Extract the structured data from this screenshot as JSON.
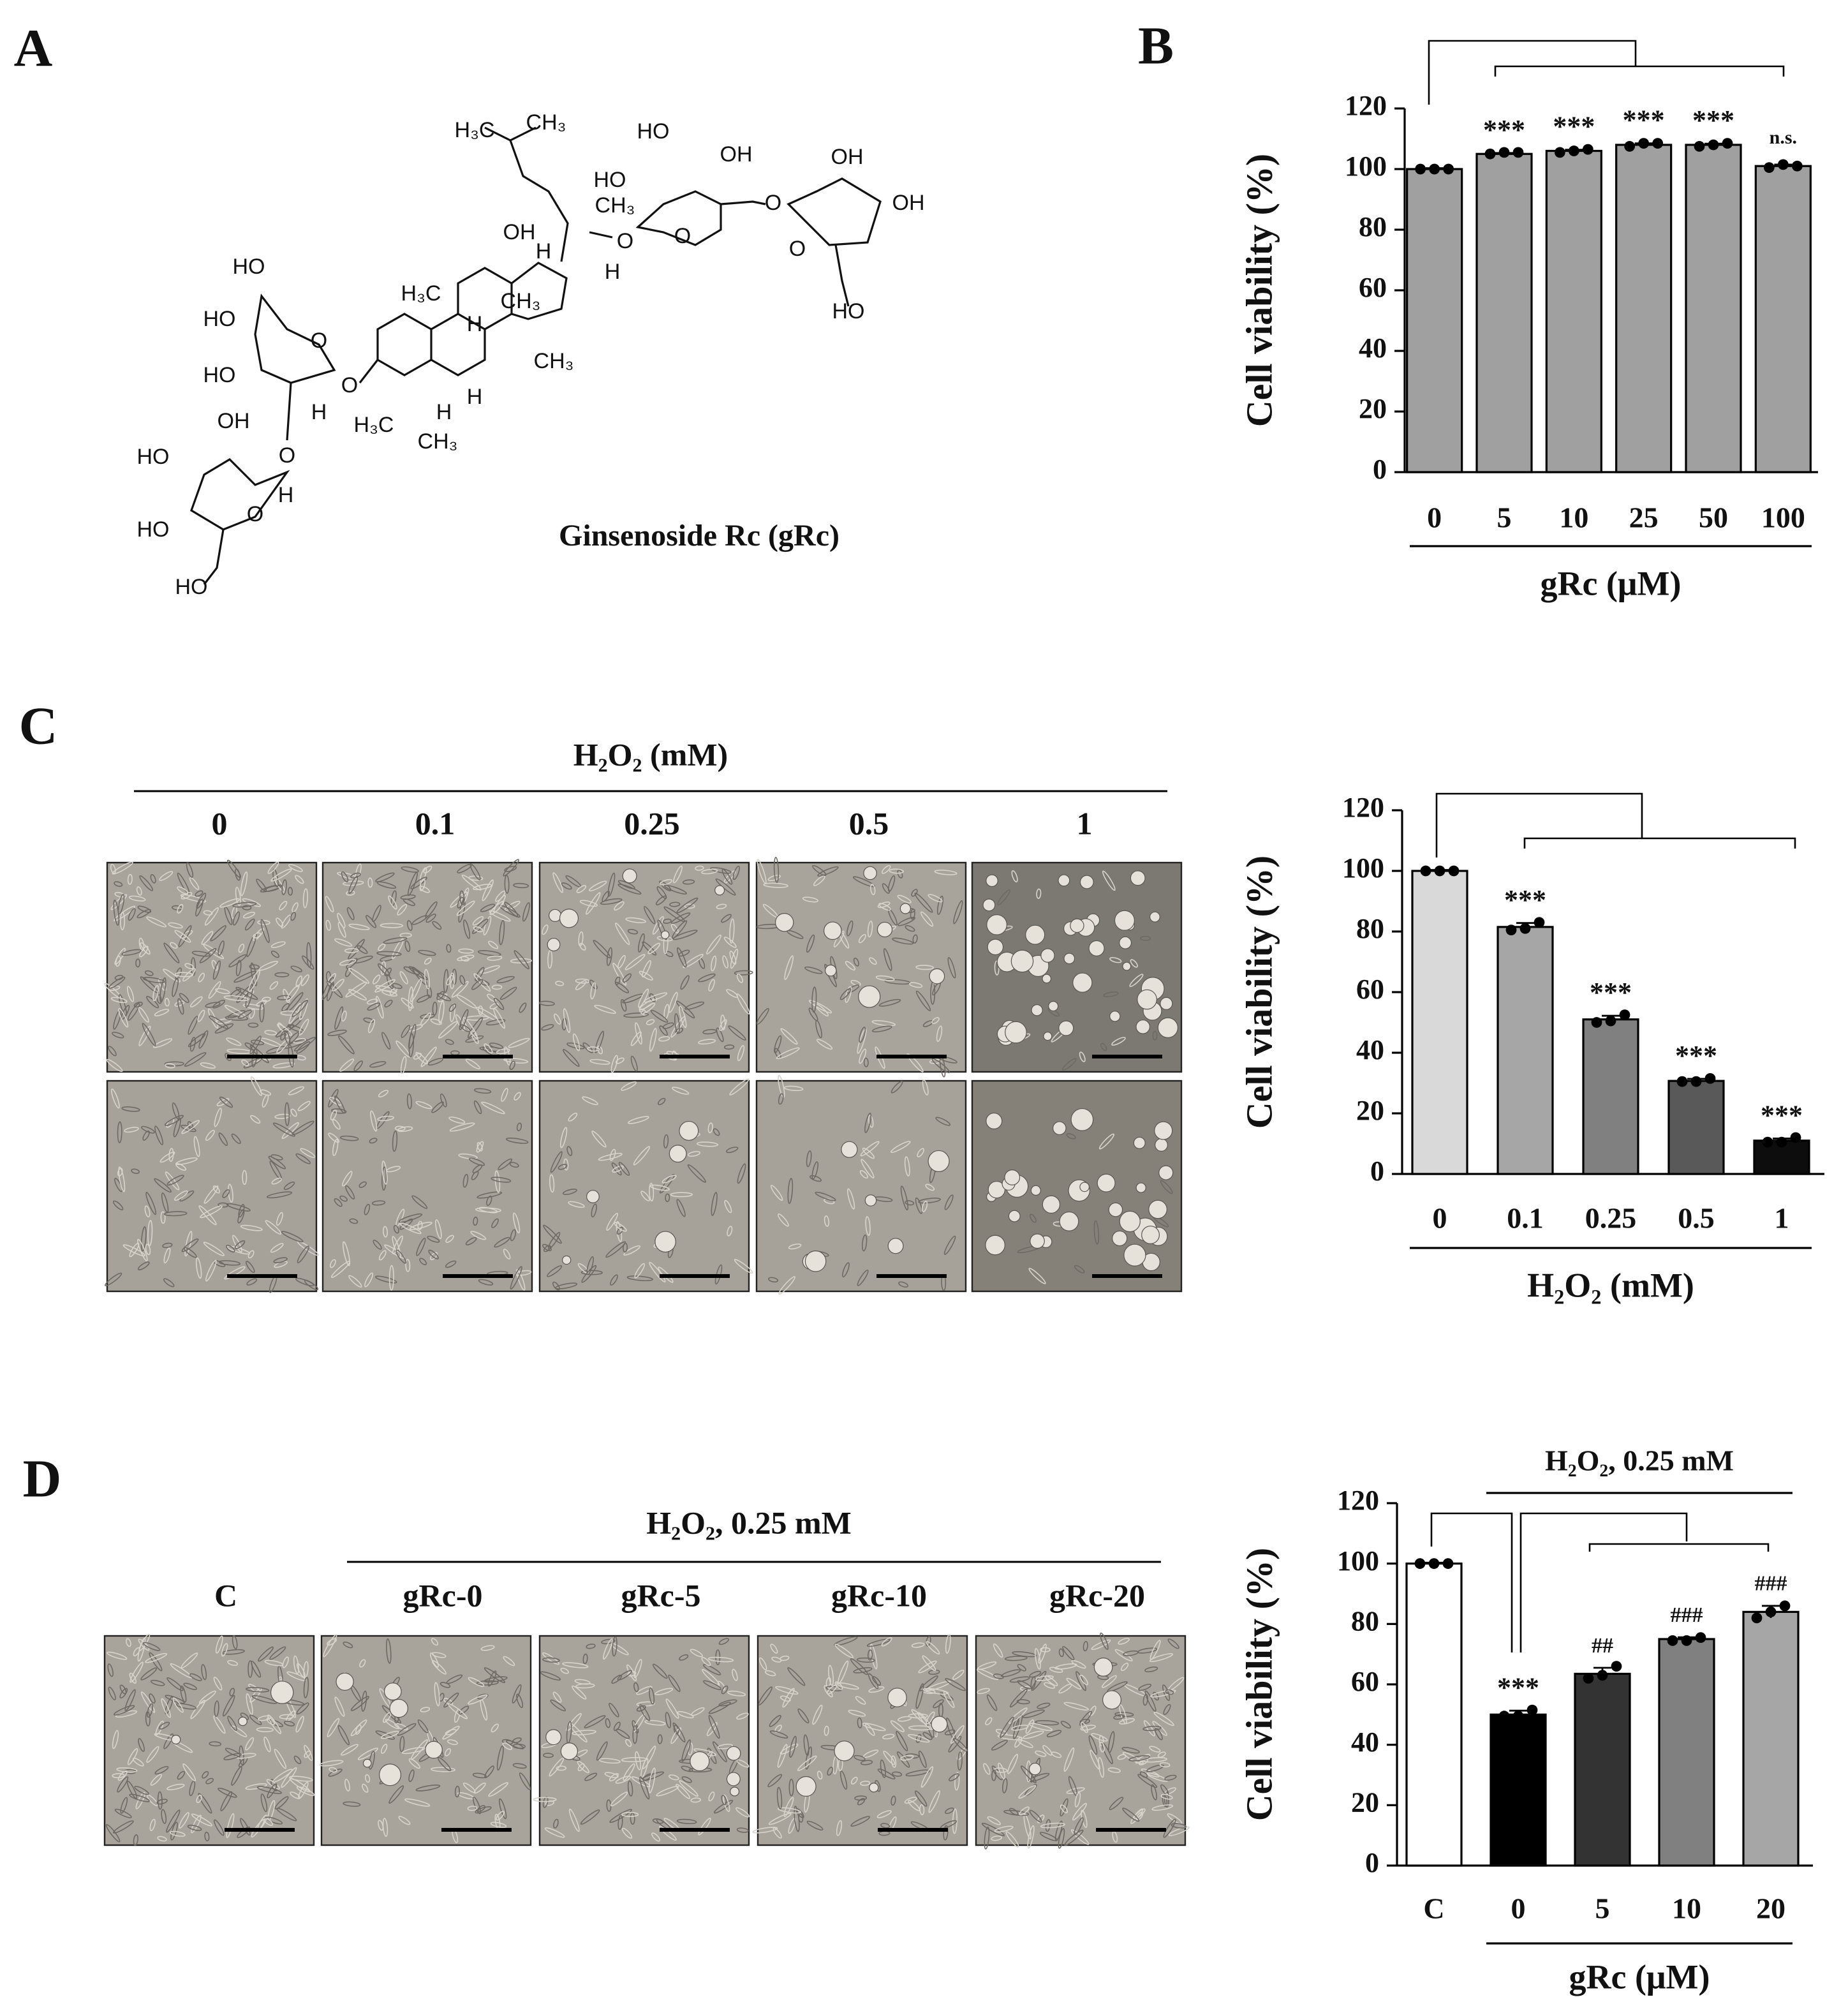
{
  "panels": {
    "A": {
      "label": "A",
      "compound": "Ginsenoside Rc (gRc)",
      "atoms": [
        "H₃C",
        "CH₃",
        "HO",
        "OH",
        "HO",
        "CH₃",
        "OH",
        "O",
        "OH",
        "OH",
        "H",
        "O",
        "O",
        "H",
        "HO",
        "H₃C",
        "CH₃",
        "HO",
        "O",
        "HO",
        "HO",
        "H",
        "O",
        "H",
        "CH₃",
        "H",
        "OH",
        "O",
        "H₃C",
        "CH₃",
        "H",
        "HO",
        "O",
        "HO",
        "HO",
        "O",
        "H"
      ]
    },
    "B": {
      "label": "B"
    },
    "C": {
      "label": "C",
      "header": "H₂O₂ (mM)",
      "columns": [
        "0",
        "0.1",
        "0.25",
        "0.5",
        "1"
      ]
    },
    "D": {
      "label": "D",
      "header": "H₂O₂, 0.25 mM",
      "columns": [
        "C",
        "gRc-0",
        "gRc-5",
        "gRc-10",
        "gRc-20"
      ]
    }
  },
  "chart_data": [
    {
      "type": "bar",
      "ylabel": "Cell viability (%)",
      "xlabel": "gRc (μM)",
      "categories": [
        "0",
        "5",
        "10",
        "25",
        "50",
        "100"
      ],
      "values": [
        100,
        105,
        106,
        108,
        108,
        101
      ],
      "errors": [
        0.3,
        0.3,
        0.4,
        0.5,
        0.4,
        0.5
      ],
      "replicates": [
        [
          100,
          100,
          100
        ],
        [
          105,
          105.5,
          105.5
        ],
        [
          105.5,
          106,
          106.5
        ],
        [
          107.5,
          108.5,
          108.5
        ],
        [
          107.5,
          108,
          108.5
        ],
        [
          100.5,
          101.5,
          101
        ]
      ],
      "annotations": [
        null,
        "***",
        "***",
        "***",
        "***",
        "n.s."
      ],
      "colors": [
        "#a0a0a0",
        "#a0a0a0",
        "#a0a0a0",
        "#a0a0a0",
        "#a0a0a0",
        "#a0a0a0"
      ],
      "ylim": [
        0,
        120
      ],
      "yticks": [
        0,
        20,
        40,
        60,
        80,
        100,
        120
      ]
    },
    {
      "type": "bar",
      "ylabel": "Cell viability (%)",
      "xlabel": "H₂O₂ (mM)",
      "categories": [
        "0",
        "0.1",
        "0.25",
        "0.5",
        "1"
      ],
      "values": [
        100,
        81.5,
        51,
        30.7,
        11
      ],
      "errors": [
        0.3,
        1.3,
        1.2,
        0.7,
        0.7
      ],
      "replicates": [
        [
          100,
          100,
          100
        ],
        [
          80.5,
          81,
          83
        ],
        [
          50,
          50.5,
          52.5
        ],
        [
          30.5,
          30.5,
          31.5
        ],
        [
          10.5,
          10.5,
          12
        ]
      ],
      "annotations": [
        null,
        "***",
        "***",
        "***",
        "***"
      ],
      "colors": [
        "#d9d9d9",
        "#a6a6a6",
        "#808080",
        "#595959",
        "#0d0d0d"
      ],
      "ylim": [
        0,
        120
      ],
      "yticks": [
        0,
        20,
        40,
        60,
        80,
        100,
        120
      ]
    },
    {
      "type": "bar",
      "ylabel": "Cell viability (%)",
      "xlabel": "gRc (μM)",
      "group_label": "H₂O₂, 0.25 mM",
      "categories": [
        "C",
        "0",
        "5",
        "10",
        "20"
      ],
      "values": [
        100,
        50,
        63.5,
        75,
        84
      ],
      "errors": [
        0.3,
        1.3,
        2,
        0.6,
        2
      ],
      "replicates": [
        [
          100,
          100,
          100
        ],
        [
          49.5,
          49.5,
          51.5
        ],
        [
          62,
          63,
          66
        ],
        [
          74.5,
          74.5,
          75.5
        ],
        [
          82,
          84,
          86
        ]
      ],
      "annotations": [
        null,
        "***",
        "##",
        "###",
        "###"
      ],
      "colors": [
        "#ffffff",
        "#000000",
        "#333333",
        "#808080",
        "#a6a6a6"
      ],
      "ylim": [
        0,
        120
      ],
      "yticks": [
        0,
        20,
        40,
        60,
        80,
        100,
        120
      ]
    }
  ]
}
